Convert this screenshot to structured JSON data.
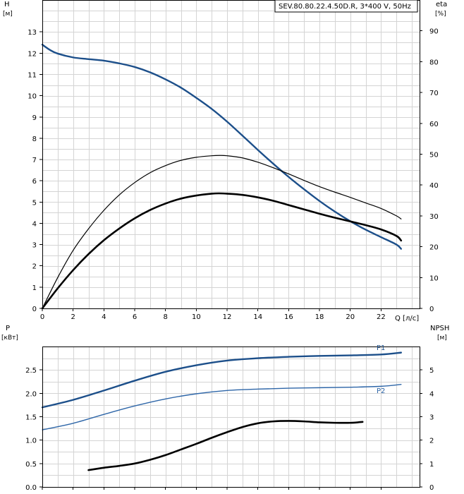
{
  "chart_data": [
    {
      "type": "line",
      "title": "SEV.80.80.22.4.50D.R, 3*400 V, 50Hz",
      "y_left_label": "H",
      "y_left_unit": "[м]",
      "y_right_label": "eta",
      "y_right_unit": "[%]",
      "x_label": "Q [л/с]",
      "x_ticks": [
        "0",
        "2",
        "4",
        "6",
        "8",
        "10",
        "12",
        "14",
        "16",
        "18",
        "20",
        "22"
      ],
      "y_left_ticks": [
        "0",
        "1",
        "2",
        "3",
        "4",
        "5",
        "6",
        "7",
        "8",
        "9",
        "10",
        "11",
        "12",
        "13"
      ],
      "y_right_ticks": [
        "0",
        "10",
        "20",
        "30",
        "40",
        "50",
        "60",
        "70",
        "80",
        "90"
      ],
      "xlim": [
        0,
        24.5
      ],
      "ylim_left": [
        0,
        14.5
      ],
      "ylim_right": [
        0,
        100
      ],
      "grid": true,
      "series": [
        {
          "id": "H",
          "axis": "left",
          "color": "#1c4f8a",
          "width": 2.4,
          "x": [
            0,
            0.5,
            1,
            2,
            3,
            4,
            5,
            6,
            7,
            8,
            9,
            10,
            11,
            12,
            13,
            14,
            15,
            16,
            17,
            18,
            19,
            20,
            21,
            22,
            23,
            23.3
          ],
          "y": [
            12.4,
            12.15,
            11.98,
            11.8,
            11.72,
            11.65,
            11.52,
            11.35,
            11.1,
            10.77,
            10.38,
            9.9,
            9.38,
            8.78,
            8.12,
            7.45,
            6.8,
            6.18,
            5.6,
            5.05,
            4.55,
            4.1,
            3.7,
            3.35,
            3.0,
            2.8
          ]
        },
        {
          "id": "eta_pump",
          "axis": "right",
          "color": "#000000",
          "width": 1.2,
          "x": [
            0,
            1,
            2,
            3,
            4,
            5,
            6,
            7,
            8,
            9,
            10,
            11,
            11.5,
            12,
            13,
            14,
            15,
            16,
            17,
            18,
            19,
            20,
            21,
            22,
            23,
            23.3
          ],
          "y": [
            0,
            10,
            18.8,
            25.8,
            31.8,
            36.8,
            40.8,
            44.0,
            46.3,
            48.0,
            49.0,
            49.5,
            49.6,
            49.5,
            48.8,
            47.4,
            45.6,
            43.6,
            41.5,
            39.5,
            37.7,
            36.0,
            34.2,
            32.4,
            30.0,
            29.0
          ]
        },
        {
          "id": "eta_total",
          "axis": "right",
          "color": "#000000",
          "width": 2.6,
          "x": [
            0,
            1,
            2,
            3,
            4,
            5,
            6,
            7,
            8,
            9,
            10,
            11,
            11.5,
            12,
            13,
            14,
            15,
            16,
            17,
            18,
            19,
            20,
            21,
            22,
            23,
            23.3
          ],
          "y": [
            0,
            6.5,
            12.4,
            17.6,
            22.1,
            25.9,
            29.2,
            31.9,
            34.0,
            35.6,
            36.6,
            37.2,
            37.3,
            37.2,
            36.8,
            36.0,
            34.9,
            33.5,
            32.1,
            30.7,
            29.4,
            28.2,
            27.0,
            25.6,
            23.5,
            22.0
          ]
        }
      ]
    },
    {
      "type": "line",
      "y_left_label": "P",
      "y_left_unit": "[кВт]",
      "y_right_label": "NPSH",
      "y_right_unit": "[м]",
      "y_left_ticks": [
        "0.0",
        "0.5",
        "1.0",
        "1.5",
        "2.0",
        "2.5"
      ],
      "y_right_ticks": [
        "0",
        "1",
        "2",
        "3",
        "4",
        "5"
      ],
      "ylim_left": [
        0,
        3.0
      ],
      "ylim_right": [
        0,
        6.0
      ],
      "grid": true,
      "series": [
        {
          "id": "P1",
          "name": "P1",
          "axis": "left",
          "color": "#1c4f8a",
          "width": 2.4,
          "x": [
            0,
            2,
            4,
            6,
            8,
            10,
            12,
            14,
            16,
            18,
            20,
            22,
            23.3
          ],
          "y": [
            1.7,
            1.86,
            2.06,
            2.27,
            2.46,
            2.6,
            2.7,
            2.75,
            2.78,
            2.8,
            2.81,
            2.83,
            2.87
          ]
        },
        {
          "id": "P2",
          "name": "P2",
          "axis": "left",
          "color": "#2e66a8",
          "width": 1.4,
          "x": [
            0,
            2,
            4,
            6,
            8,
            10,
            12,
            14,
            16,
            18,
            20,
            22,
            23.3
          ],
          "y": [
            1.22,
            1.36,
            1.55,
            1.73,
            1.88,
            1.99,
            2.06,
            2.09,
            2.11,
            2.12,
            2.13,
            2.15,
            2.19
          ]
        },
        {
          "id": "NPSH",
          "axis": "right",
          "color": "#000000",
          "width": 2.6,
          "x": [
            3.0,
            4,
            5,
            6,
            7,
            8,
            9,
            10,
            11,
            12,
            13,
            14,
            15,
            16,
            17,
            18,
            19,
            20,
            20.8
          ],
          "y": [
            0.72,
            0.82,
            0.9,
            1.0,
            1.16,
            1.36,
            1.6,
            1.84,
            2.1,
            2.34,
            2.56,
            2.72,
            2.8,
            2.82,
            2.8,
            2.76,
            2.74,
            2.74,
            2.78
          ]
        }
      ]
    }
  ]
}
